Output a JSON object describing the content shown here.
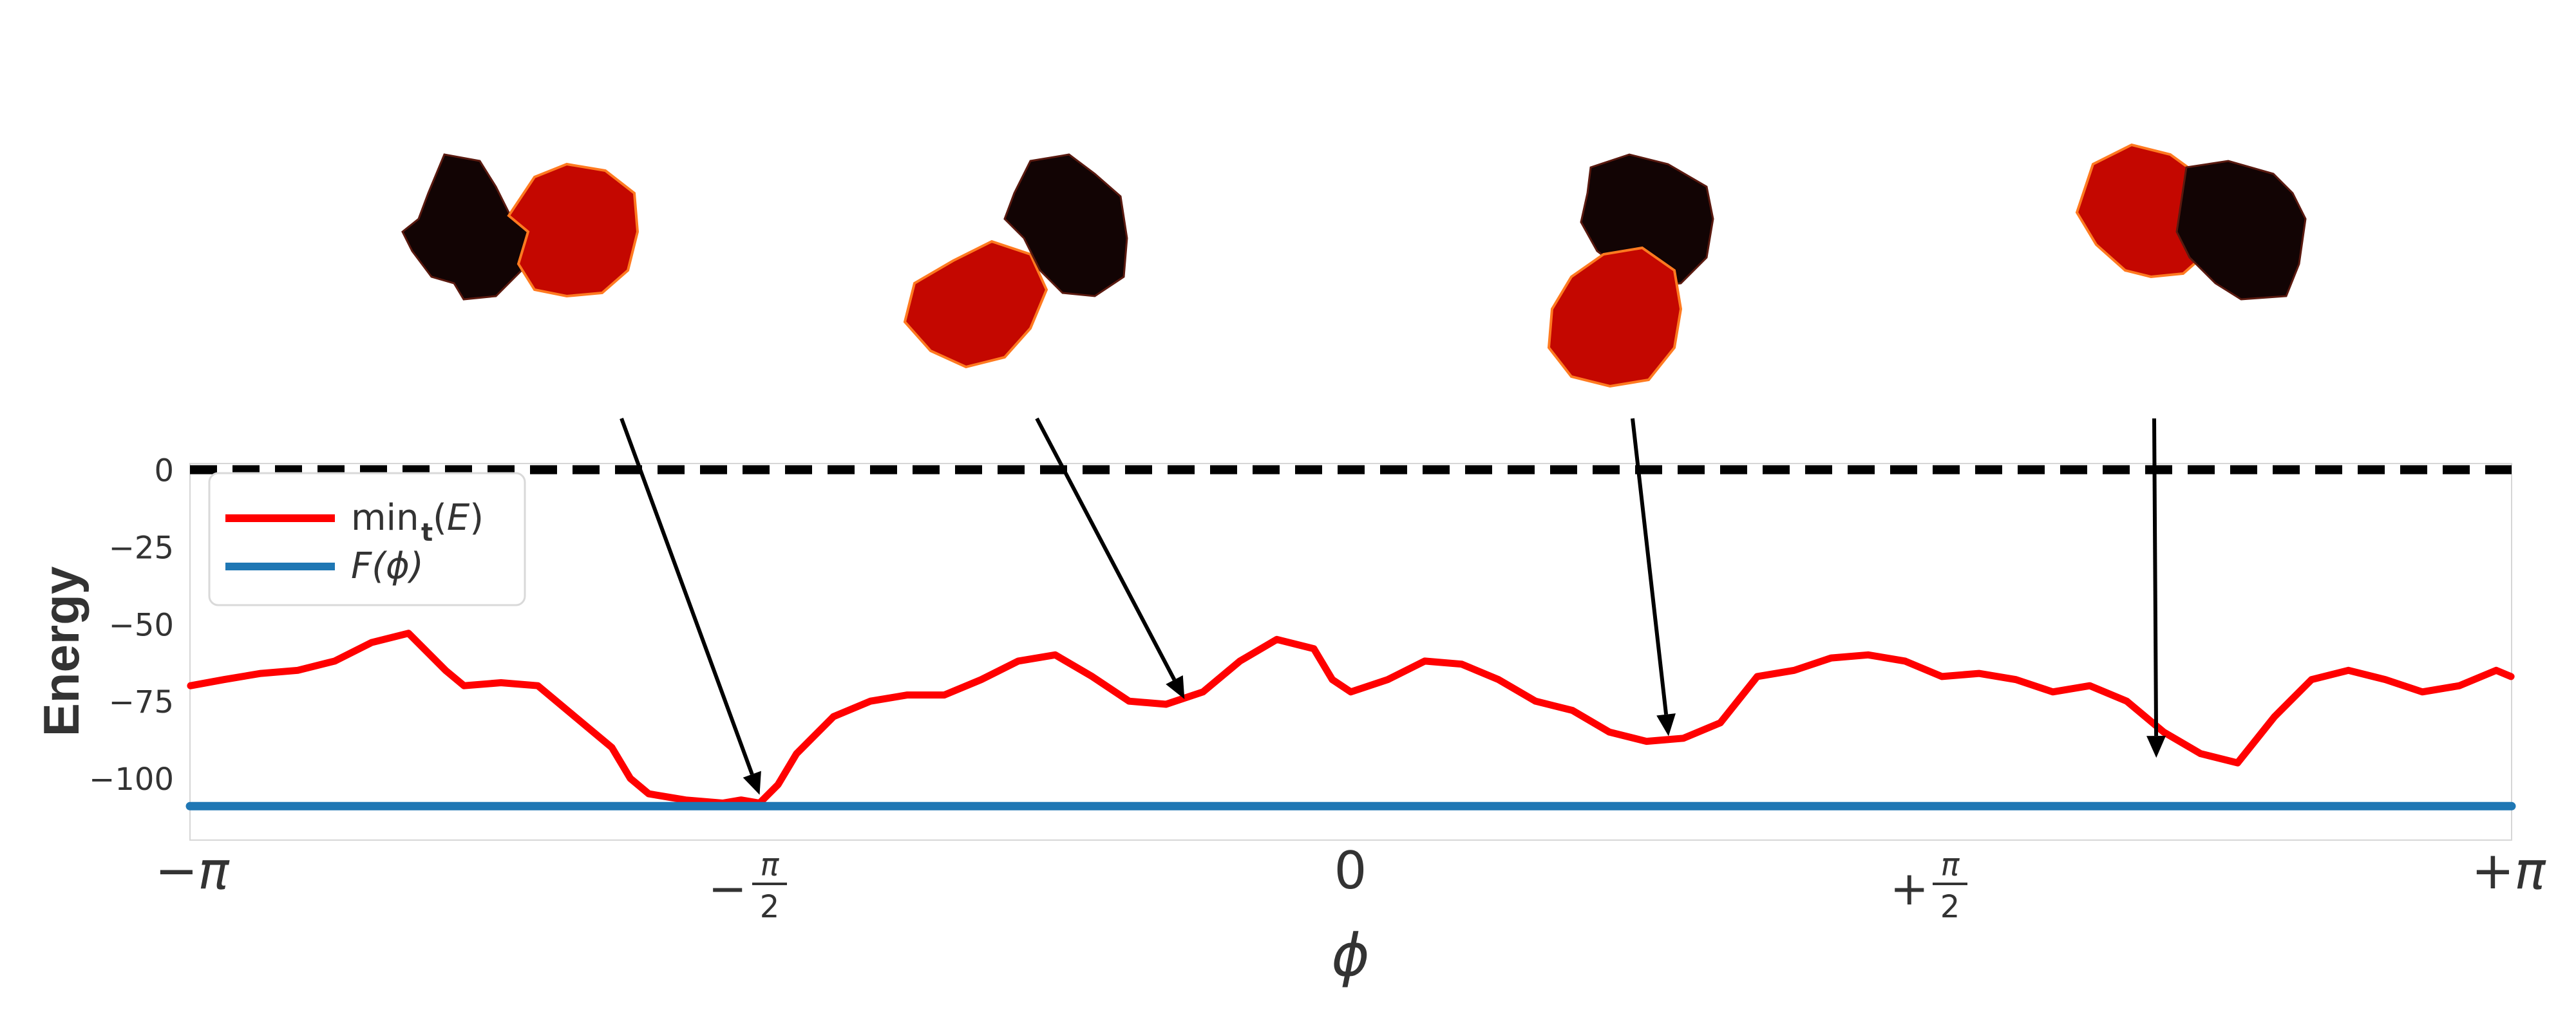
{
  "chart_data": {
    "type": "line",
    "title": "",
    "xlabel": "ϕ",
    "ylabel": "Energy",
    "xlim": [
      -3.14159,
      3.14159
    ],
    "ylim": [
      -120,
      2
    ],
    "grid": false,
    "legend_position": "upper-left",
    "xticks": [
      {
        "value": -3.14159,
        "label": "−π"
      },
      {
        "value": -1.5708,
        "label": "−π/2"
      },
      {
        "value": 0,
        "label": "0"
      },
      {
        "value": 1.5708,
        "label": "+π/2"
      },
      {
        "value": 3.14159,
        "label": "+π"
      }
    ],
    "yticks": [
      0,
      -25,
      -50,
      -75,
      -100
    ],
    "series": [
      {
        "name": "min_t(E)",
        "color": "#ff0000",
        "x": [
          -3.14,
          -3.05,
          -2.95,
          -2.85,
          -2.75,
          -2.65,
          -2.55,
          -2.45,
          -2.4,
          -2.3,
          -2.2,
          -2.1,
          -2.0,
          -1.95,
          -1.9,
          -1.8,
          -1.7,
          -1.65,
          -1.6,
          -1.55,
          -1.5,
          -1.4,
          -1.3,
          -1.2,
          -1.1,
          -1.0,
          -0.9,
          -0.8,
          -0.7,
          -0.6,
          -0.5,
          -0.4,
          -0.3,
          -0.2,
          -0.1,
          -0.05,
          0.0,
          0.1,
          0.2,
          0.3,
          0.4,
          0.5,
          0.6,
          0.7,
          0.8,
          0.9,
          1.0,
          1.1,
          1.2,
          1.3,
          1.4,
          1.5,
          1.6,
          1.7,
          1.8,
          1.9,
          2.0,
          2.1,
          2.2,
          2.3,
          2.4,
          2.5,
          2.6,
          2.7,
          2.8,
          2.9,
          3.0,
          3.1,
          3.14
        ],
        "values": [
          -70,
          -68,
          -66,
          -65,
          -62,
          -56,
          -53,
          -65,
          -70,
          -69,
          -70,
          -80,
          -90,
          -100,
          -105,
          -107,
          -108,
          -107,
          -108,
          -102,
          -92,
          -80,
          -75,
          -73,
          -73,
          -68,
          -62,
          -60,
          -67,
          -75,
          -76,
          -72,
          -62,
          -55,
          -58,
          -68,
          -72,
          -68,
          -62,
          -63,
          -68,
          -75,
          -78,
          -85,
          -88,
          -87,
          -82,
          -67,
          -65,
          -61,
          -60,
          -62,
          -67,
          -66,
          -68,
          -72,
          -70,
          -75,
          -85,
          -92,
          -95,
          -80,
          -68,
          -65,
          -68,
          -72,
          -70,
          -65,
          -67
        ]
      },
      {
        "name": "F(ϕ)",
        "color": "#1f77b4",
        "x": [
          -3.14159,
          3.14159
        ],
        "values": [
          -109,
          -109
        ]
      }
    ],
    "reference_lines": [
      {
        "y": 0,
        "style": "dashed",
        "color": "#000000"
      }
    ],
    "annotations": [
      {
        "type": "arrow",
        "target_x": -1.6,
        "target_y": -107
      },
      {
        "type": "arrow",
        "target_x": -0.45,
        "target_y": -76
      },
      {
        "type": "arrow",
        "target_x": 0.86,
        "target_y": -88
      },
      {
        "type": "arrow",
        "target_x": 2.18,
        "target_y": -95
      }
    ]
  }
}
